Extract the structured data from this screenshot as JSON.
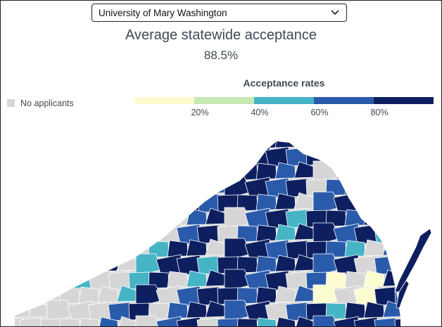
{
  "selector": {
    "value": "University of Mary Washington"
  },
  "headline": "Average statewide acceptance",
  "statewide_rate": "88.5%",
  "legend": {
    "title": "Acceptance rates",
    "bins": [
      {
        "color": "#fcfcd0"
      },
      {
        "color": "#c8e8b4"
      },
      {
        "color": "#45b5c6"
      },
      {
        "color": "#2a5bab"
      },
      {
        "color": "#0d1f5f"
      }
    ],
    "ticks": [
      "20%",
      "40%",
      "60%",
      "80%"
    ],
    "no_data": {
      "label": "No applicants",
      "color": "#d6d6d6"
    }
  },
  "map": {
    "region": "Virginia",
    "colors": {
      "none": "#d6d6d6",
      "r0_20": "#fcfcd0",
      "r20_40": "#c8e8b4",
      "r40_60": "#45b5c6",
      "r60_80": "#2a5bab",
      "r80_100": "#0d1f5f",
      "border": "#ffffff"
    }
  }
}
